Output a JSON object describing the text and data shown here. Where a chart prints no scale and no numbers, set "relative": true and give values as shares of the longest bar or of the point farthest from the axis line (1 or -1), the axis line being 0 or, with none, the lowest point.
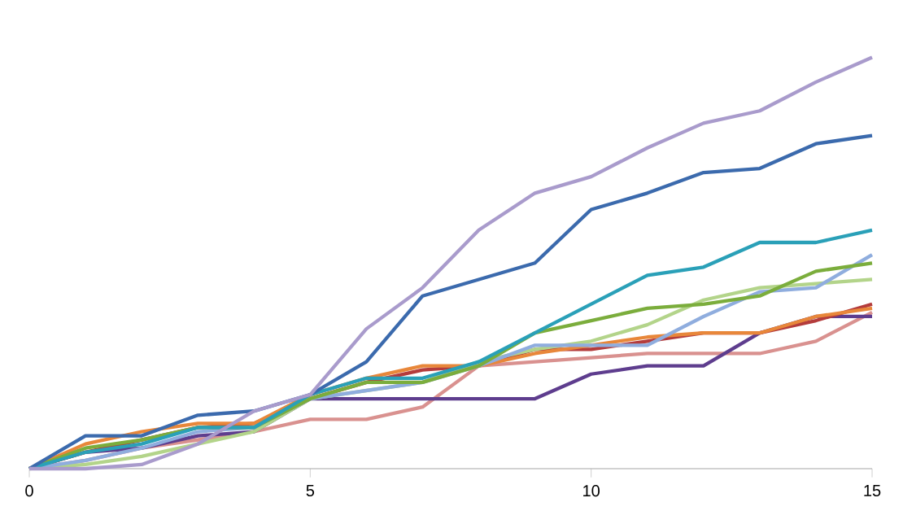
{
  "chart_data": {
    "type": "line",
    "relative": true,
    "x": [
      0,
      1,
      2,
      3,
      4,
      5,
      6,
      7,
      8,
      9,
      10,
      11,
      12,
      13,
      14,
      15
    ],
    "xlim": [
      0,
      15
    ],
    "xticks": [
      0,
      5,
      10,
      15
    ],
    "tick_labels": "x",
    "grid": false,
    "marker": "none",
    "line_style": "solid",
    "series": [
      {
        "color": "#d9918f",
        "values": [
          0,
          0.02,
          0.05,
          0.07,
          0.09,
          0.12,
          0.12,
          0.15,
          0.25,
          0.26,
          0.27,
          0.28,
          0.28,
          0.28,
          0.31,
          0.38
        ]
      },
      {
        "color": "#5e3d8e",
        "values": [
          0,
          0.04,
          0.05,
          0.08,
          0.09,
          0.17,
          0.17,
          0.17,
          0.17,
          0.17,
          0.23,
          0.25,
          0.25,
          0.33,
          0.37,
          0.37
        ]
      },
      {
        "color": "#b43c3c",
        "values": [
          0,
          0.04,
          0.07,
          0.1,
          0.11,
          0.17,
          0.21,
          0.24,
          0.25,
          0.29,
          0.29,
          0.31,
          0.33,
          0.33,
          0.36,
          0.4
        ]
      },
      {
        "color": "#e8873a",
        "values": [
          0,
          0.06,
          0.09,
          0.11,
          0.11,
          0.18,
          0.22,
          0.25,
          0.25,
          0.28,
          0.3,
          0.32,
          0.33,
          0.33,
          0.37,
          0.39
        ]
      },
      {
        "color": "#b3d48a",
        "values": [
          0,
          0.01,
          0.03,
          0.06,
          0.09,
          0.17,
          0.19,
          0.21,
          0.26,
          0.29,
          0.31,
          0.35,
          0.41,
          0.44,
          0.45,
          0.46
        ]
      },
      {
        "color": "#8fadde",
        "values": [
          0,
          0.02,
          0.05,
          0.09,
          0.1,
          0.17,
          0.19,
          0.21,
          0.25,
          0.3,
          0.3,
          0.3,
          0.37,
          0.43,
          0.44,
          0.52
        ]
      },
      {
        "color": "#7bad3c",
        "values": [
          0,
          0.05,
          0.07,
          0.1,
          0.1,
          0.17,
          0.21,
          0.21,
          0.25,
          0.33,
          0.36,
          0.39,
          0.4,
          0.42,
          0.48,
          0.5
        ]
      },
      {
        "color": "#2aa0b8",
        "values": [
          0,
          0.04,
          0.06,
          0.1,
          0.1,
          0.18,
          0.22,
          0.22,
          0.26,
          0.33,
          0.4,
          0.47,
          0.49,
          0.55,
          0.55,
          0.58
        ]
      },
      {
        "color": "#3b6aad",
        "values": [
          0,
          0.08,
          0.08,
          0.13,
          0.14,
          0.18,
          0.26,
          0.42,
          0.46,
          0.5,
          0.63,
          0.67,
          0.72,
          0.73,
          0.79,
          0.81
        ]
      },
      {
        "color": "#a99bcc",
        "values": [
          0,
          0.0,
          0.01,
          0.06,
          0.14,
          0.18,
          0.34,
          0.44,
          0.58,
          0.67,
          0.71,
          0.78,
          0.84,
          0.87,
          0.94,
          1
        ]
      }
    ]
  }
}
